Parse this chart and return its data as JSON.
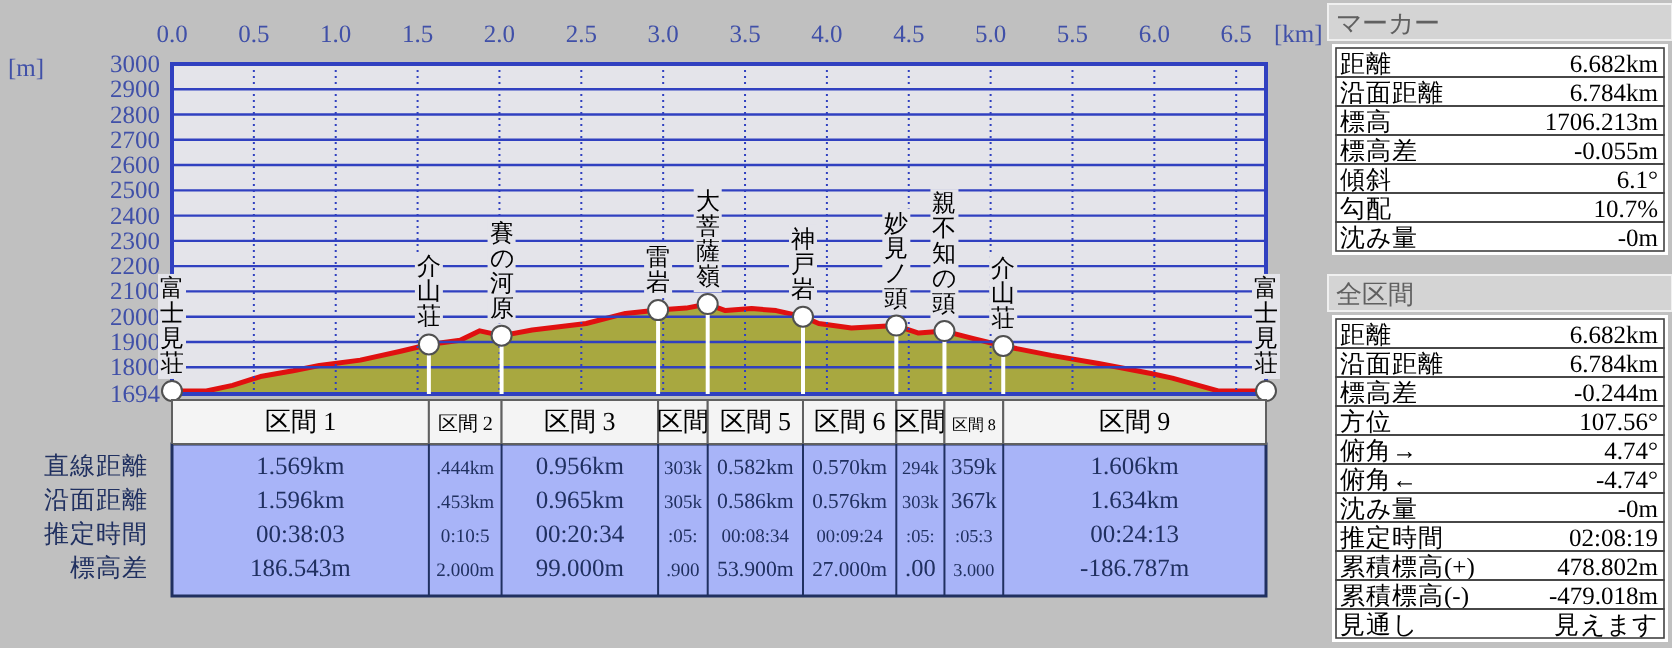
{
  "chart_data": [
    {
      "type": "area",
      "xlabel": "[km]",
      "ylabel": "[m]",
      "color": "#a8a840",
      "grid": true,
      "x": [
        0,
        0.21,
        0.37,
        0.54,
        0.74,
        0.9,
        1.15,
        1.39,
        1.569,
        1.76,
        1.88,
        2.013,
        2.2,
        2.53,
        2.77,
        2.969,
        3.14,
        3.272,
        3.38,
        3.54,
        3.69,
        3.854,
        3.95,
        4.15,
        4.424,
        4.56,
        4.718,
        4.89,
        5.077,
        5.37,
        5.66,
        5.98,
        6.11,
        6.39,
        6.682
      ],
      "values": [
        1706,
        1706,
        1728,
        1763,
        1786,
        1807,
        1828,
        1862,
        1890,
        1907,
        1944,
        1925,
        1947,
        1973,
        2013,
        2026,
        2034,
        2050,
        2024,
        2032,
        2024,
        2000,
        1973,
        1955,
        1965,
        1935,
        1943,
        1914,
        1884,
        1847,
        1815,
        1775,
        1757,
        1706,
        1706
      ],
      "xlim": [
        0,
        6.682
      ],
      "ylim": [
        1694,
        3000
      ],
      "xticks": [
        {
          "value": 0,
          "label": "0.0"
        },
        {
          "value": 0.5,
          "label": "0.5"
        },
        {
          "value": 1,
          "label": "1.0"
        },
        {
          "value": 1.5,
          "label": "1.5"
        },
        {
          "value": 2,
          "label": "2.0"
        },
        {
          "value": 2.5,
          "label": "2.5"
        },
        {
          "value": 3,
          "label": "3.0"
        },
        {
          "value": 3.5,
          "label": "3.5"
        },
        {
          "value": 4,
          "label": "4.0"
        },
        {
          "value": 4.5,
          "label": "4.5"
        },
        {
          "value": 5,
          "label": "5.0"
        },
        {
          "value": 5.5,
          "label": "5.5"
        },
        {
          "value": 6,
          "label": "6.0"
        },
        {
          "value": 6.5,
          "label": "6.5"
        }
      ],
      "yticks": [
        1694,
        1800,
        1900,
        2000,
        2100,
        2200,
        2300,
        2400,
        2500,
        2600,
        2700,
        2800,
        2900,
        3000
      ],
      "annotations": [
        {
          "text": "富士見荘",
          "x": 0,
          "y": 1706
        },
        {
          "text": "介山荘",
          "x": 1.569,
          "y": 1890
        },
        {
          "text": "賽の河原",
          "x": 2.013,
          "y": 1925
        },
        {
          "text": "雷岩",
          "x": 2.969,
          "y": 2026
        },
        {
          "text": "大菩薩嶺",
          "x": 3.272,
          "y": 2050
        },
        {
          "text": "神戸岩",
          "x": 3.854,
          "y": 2000
        },
        {
          "text": "妙見ノ頭",
          "x": 4.424,
          "y": 1965
        },
        {
          "text": "親不知の頭",
          "x": 4.718,
          "y": 1943
        },
        {
          "text": "介山荘",
          "x": 5.077,
          "y": 1884
        },
        {
          "text": "富士見荘",
          "x": 6.682,
          "y": 1706
        }
      ]
    },
    {
      "type": "other",
      "categories": [
        "区間 1",
        "区間 2",
        "区間 3",
        "区間",
        "区間 5",
        "区間 6",
        "区間",
        "区間 8",
        "区間 9"
      ],
      "y_categories": [
        "直線距離",
        "沿面距離",
        "推定時間",
        "標高差"
      ],
      "cell_labels": [
        [
          "1.569km",
          ".444km",
          "0.956km",
          "303k",
          "0.582km",
          "0.570km",
          "294k",
          "359k",
          "1.606km"
        ],
        [
          "1.596km",
          ".453km",
          "0.965km",
          "305k",
          "0.586km",
          "0.576km",
          "303k",
          "367k",
          "1.634km"
        ],
        [
          "00:38:03",
          "0:10:5",
          "00:20:34",
          ":05:",
          "00:08:34",
          "00:09:24",
          ":05:",
          ":05:3",
          "00:24:13"
        ],
        [
          "186.543m",
          "2.000m",
          "99.000m",
          ".900",
          "53.900m",
          "27.000m",
          ".00",
          "3.000",
          "-186.787m"
        ]
      ]
    },
    {
      "type": "other",
      "title": "マーカー",
      "y_categories": [
        "距離",
        "沿面距離",
        "標高",
        "標高差",
        "傾斜",
        "勾配",
        "沈み量"
      ],
      "cell_labels": [
        [
          "6.682km"
        ],
        [
          "6.784km"
        ],
        [
          "1706.213m"
        ],
        [
          "-0.055m"
        ],
        [
          "6.1°"
        ],
        [
          "10.7%"
        ],
        [
          "-0m"
        ]
      ]
    },
    {
      "type": "other",
      "title": "全区間",
      "y_categories": [
        "距離",
        "沿面距離",
        "標高差",
        "方位",
        "俯角→",
        "俯角←",
        "沈み量",
        "推定時間",
        "累積標高(+)",
        "累積標高(-)",
        "見通し"
      ],
      "cell_labels": [
        [
          "6.682km"
        ],
        [
          "6.784km"
        ],
        [
          "-0.244m"
        ],
        [
          "107.56°"
        ],
        [
          "4.74°"
        ],
        [
          "-4.74°"
        ],
        [
          "-0m"
        ],
        [
          "02:08:19"
        ],
        [
          "478.802m"
        ],
        [
          "-479.018m"
        ],
        [
          "見えます"
        ]
      ]
    }
  ]
}
